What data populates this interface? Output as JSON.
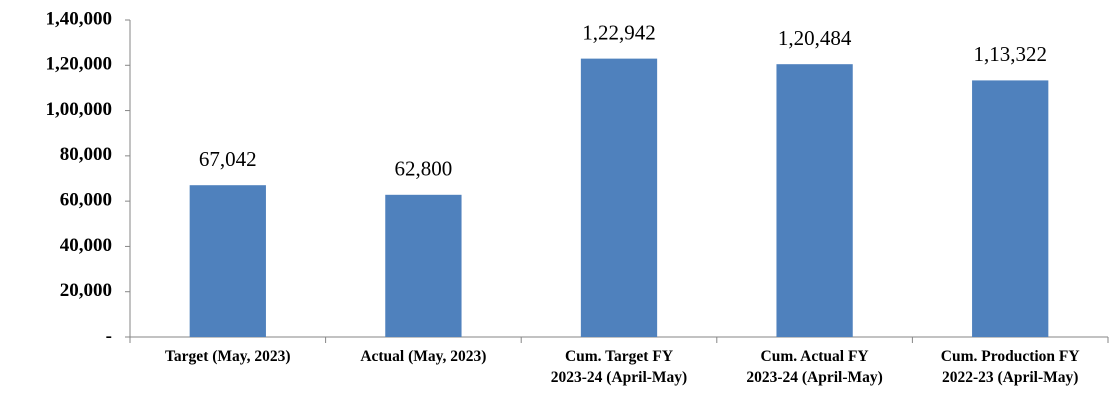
{
  "chart_data": {
    "type": "bar",
    "categories": [
      "Target (May, 2023)",
      "Actual (May, 2023)",
      "Cum. Target FY\n2023-24 (April-May)",
      "Cum. Actual FY\n2023-24 (April-May)",
      "Cum. Production FY\n2022-23 (April-May)"
    ],
    "values": [
      67042,
      62800,
      122942,
      120484,
      113322
    ],
    "value_labels": [
      "67,042",
      "62,800",
      "1,22,942",
      "1,20,484",
      "1,13,322"
    ],
    "color": "#4f81bd",
    "ylim": [
      0,
      140000
    ],
    "yticks": [
      {
        "value": 0,
        "label": "-"
      },
      {
        "value": 20000,
        "label": "20,000"
      },
      {
        "value": 40000,
        "label": "40,000"
      },
      {
        "value": 60000,
        "label": "60,000"
      },
      {
        "value": 80000,
        "label": "80,000"
      },
      {
        "value": 100000,
        "label": "1,00,000"
      },
      {
        "value": 120000,
        "label": "1,20,000"
      },
      {
        "value": 140000,
        "label": "1,40,000"
      }
    ],
    "grid": false
  }
}
